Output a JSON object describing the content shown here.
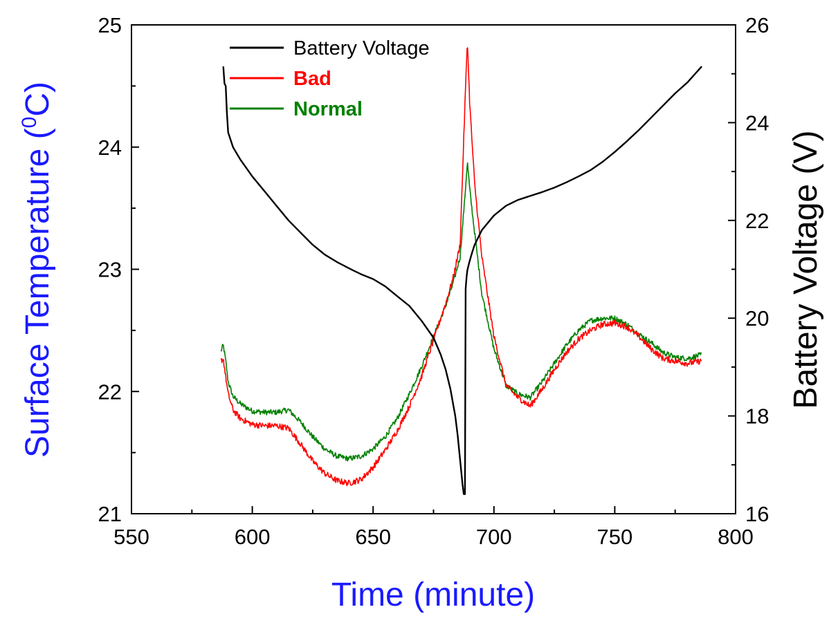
{
  "chart_data": {
    "type": "line",
    "xlabel": "Time (minute)",
    "ylabel_left": "Surface Temperature (0C)",
    "ylabel_left_parts": {
      "before": "Surface Temperature (",
      "sup": "0",
      "after": "C)"
    },
    "ylabel_right": "Battery Voltage (V)",
    "xlim": [
      550,
      800
    ],
    "ylim_left": [
      21,
      25
    ],
    "ylim_right": [
      16,
      26
    ],
    "x_ticks": [
      "550",
      "600",
      "650",
      "700",
      "750",
      "800"
    ],
    "y_left_ticks": [
      "21",
      "22",
      "23",
      "24",
      "25"
    ],
    "y_right_ticks": [
      "16",
      "18",
      "20",
      "22",
      "24",
      "26"
    ],
    "grid": false,
    "legend_position": "top-left",
    "colors": {
      "xlabel": "#1a1aff",
      "ylabel_left": "#1a1aff",
      "ylabel_right": "#000000"
    },
    "series": [
      {
        "name": "Battery Voltage",
        "axis": "right",
        "color": "#000000",
        "label_color": "#000000",
        "label_bold": false,
        "noise": 0,
        "x": [
          588,
          588.5,
          589,
          589.5,
          590,
          592,
          595,
          600,
          605,
          610,
          615,
          620,
          625,
          630,
          635,
          640,
          645,
          650,
          655,
          660,
          665,
          670,
          675,
          678,
          680,
          682,
          684,
          685,
          686,
          687,
          687.5,
          688,
          688.3,
          688.7,
          689,
          689.5,
          690,
          691,
          692,
          695,
          700,
          705,
          710,
          715,
          720,
          725,
          730,
          735,
          740,
          745,
          750,
          755,
          760,
          765,
          770,
          775,
          780,
          786
        ],
        "y": [
          25.15,
          24.8,
          24.75,
          24.2,
          23.8,
          23.5,
          23.25,
          22.9,
          22.6,
          22.3,
          22.0,
          21.75,
          21.5,
          21.3,
          21.15,
          21.02,
          20.9,
          20.8,
          20.65,
          20.45,
          20.25,
          19.95,
          19.6,
          19.25,
          18.95,
          18.55,
          18.0,
          17.6,
          17.1,
          16.6,
          16.4,
          16.4,
          20.6,
          20.85,
          20.98,
          21.08,
          21.18,
          21.35,
          21.5,
          21.8,
          22.1,
          22.3,
          22.42,
          22.5,
          22.58,
          22.67,
          22.78,
          22.9,
          23.03,
          23.2,
          23.4,
          23.62,
          23.85,
          24.1,
          24.35,
          24.6,
          24.82,
          25.15
        ]
      },
      {
        "name": "Bad",
        "axis": "left",
        "color": "#ff0000",
        "label_color": "#ff0000",
        "label_bold": true,
        "noise": 0.025,
        "x": [
          587,
          588,
          589,
          590,
          592,
          595,
          600,
          605,
          610,
          615,
          620,
          625,
          630,
          635,
          640,
          645,
          650,
          655,
          660,
          665,
          670,
          675,
          680,
          683,
          686,
          688,
          689,
          690,
          692,
          695,
          700,
          705,
          710,
          715,
          720,
          725,
          730,
          735,
          740,
          745,
          750,
          755,
          760,
          765,
          770,
          775,
          780,
          786
        ],
        "y": [
          22.25,
          22.27,
          22.12,
          21.98,
          21.85,
          21.78,
          21.73,
          21.72,
          21.72,
          21.7,
          21.57,
          21.43,
          21.33,
          21.27,
          21.25,
          21.28,
          21.38,
          21.52,
          21.68,
          21.88,
          22.12,
          22.42,
          22.72,
          22.92,
          23.2,
          24.35,
          24.88,
          24.35,
          23.7,
          23.1,
          22.45,
          22.05,
          21.95,
          21.88,
          22.02,
          22.18,
          22.32,
          22.43,
          22.5,
          22.55,
          22.56,
          22.53,
          22.45,
          22.35,
          22.27,
          22.25,
          22.23,
          22.25
        ]
      },
      {
        "name": "Normal",
        "axis": "left",
        "color": "#008000",
        "label_color": "#008000",
        "label_bold": true,
        "noise": 0.022,
        "x": [
          587,
          588,
          589,
          590,
          592,
          595,
          600,
          605,
          610,
          615,
          620,
          625,
          630,
          635,
          640,
          645,
          650,
          655,
          660,
          665,
          670,
          675,
          680,
          683,
          686,
          688,
          689,
          690,
          692,
          695,
          700,
          705,
          710,
          715,
          720,
          725,
          730,
          735,
          740,
          745,
          750,
          755,
          760,
          765,
          770,
          775,
          780,
          786
        ],
        "y": [
          22.33,
          22.38,
          22.25,
          22.08,
          21.96,
          21.9,
          21.84,
          21.83,
          21.83,
          21.85,
          21.75,
          21.63,
          21.53,
          21.47,
          21.45,
          21.47,
          21.53,
          21.63,
          21.78,
          21.98,
          22.2,
          22.45,
          22.7,
          22.88,
          23.1,
          23.6,
          23.88,
          23.65,
          23.3,
          22.8,
          22.35,
          22.05,
          21.98,
          21.95,
          22.08,
          22.23,
          22.38,
          22.5,
          22.58,
          22.6,
          22.6,
          22.55,
          22.47,
          22.4,
          22.32,
          22.28,
          22.27,
          22.3
        ]
      }
    ]
  }
}
